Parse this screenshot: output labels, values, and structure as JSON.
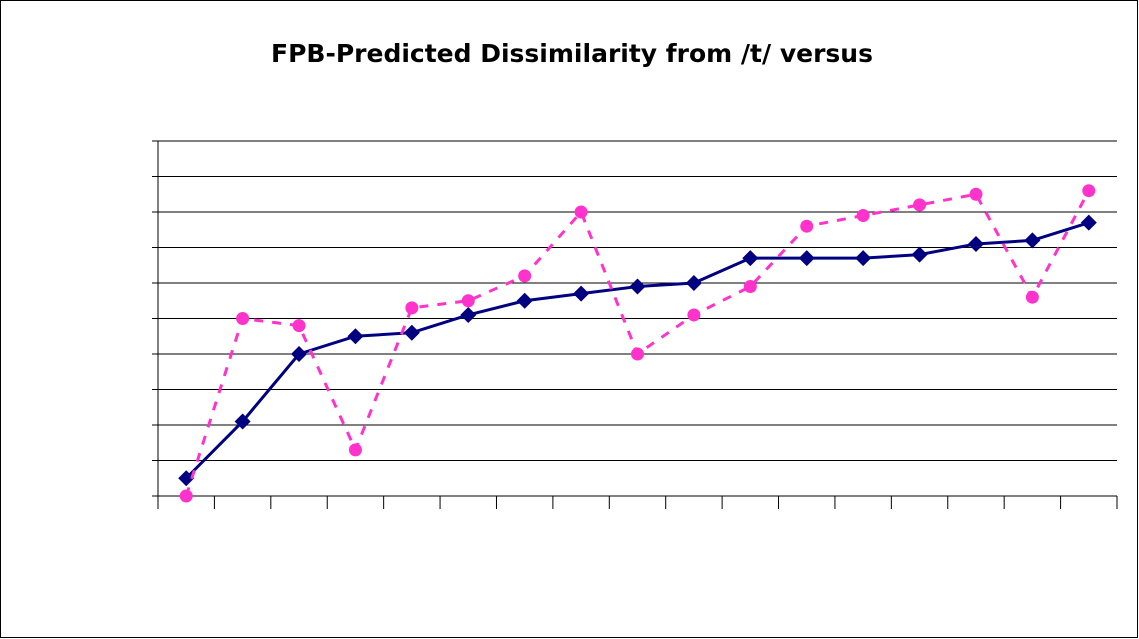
{
  "chart_data": {
    "type": "line",
    "title": "FPB-Predicted Dissimilarity from /t/ versus",
    "categories": [
      null,
      null,
      null,
      null,
      null,
      null,
      null,
      null,
      null,
      null,
      null,
      null,
      null,
      null,
      null,
      null,
      null
    ],
    "series": [
      {
        "color": "#000080",
        "marker": "diamond",
        "dash": false,
        "values": [
          0.5,
          2.1,
          4.0,
          4.5,
          4.6,
          5.1,
          5.5,
          5.7,
          5.9,
          6.0,
          6.7,
          6.7,
          6.7,
          6.8,
          7.1,
          7.2,
          7.7
        ]
      },
      {
        "color": "#ff33cc",
        "marker": "circle",
        "dash": true,
        "values": [
          0.0,
          5.0,
          4.8,
          1.3,
          5.3,
          5.5,
          6.2,
          8.0,
          4.0,
          5.1,
          5.9,
          7.6,
          7.9,
          8.2,
          8.5,
          5.6,
          8.6
        ]
      }
    ],
    "ylim": [
      0,
      10
    ],
    "yticks": [
      0,
      1,
      2,
      3,
      4,
      5,
      6,
      7,
      8,
      9,
      10
    ],
    "grid": true
  }
}
